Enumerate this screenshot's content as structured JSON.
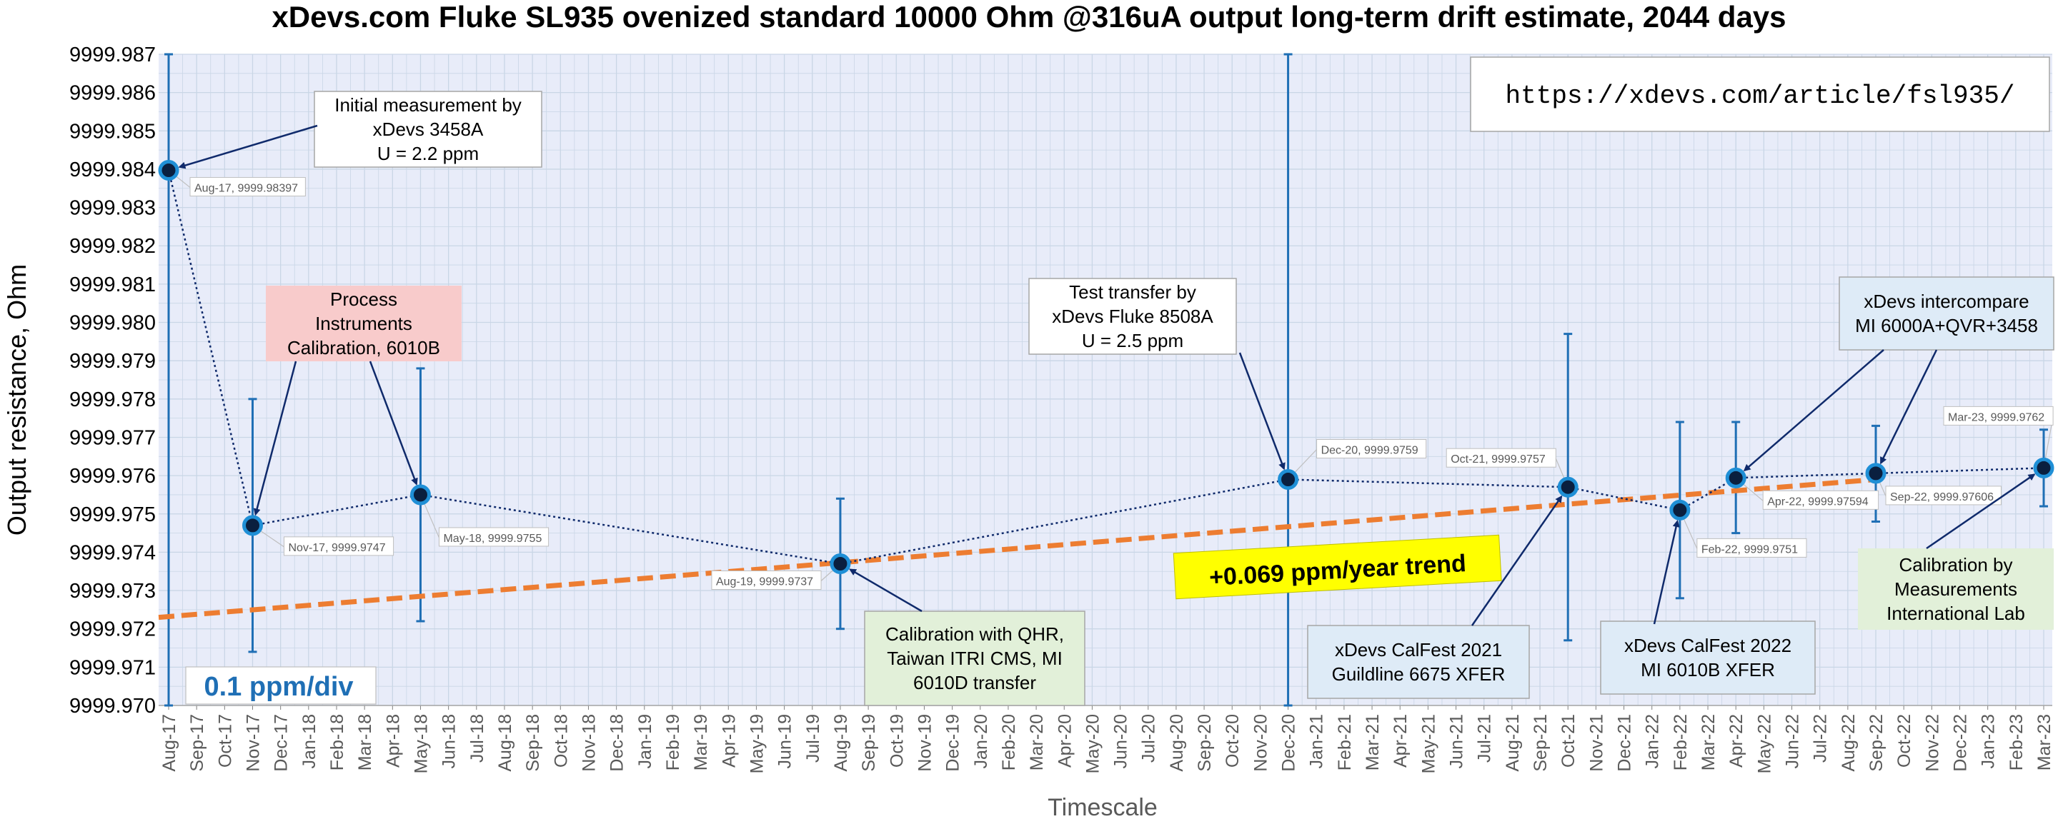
{
  "chart_data": {
    "type": "line",
    "title": "xDevs.com Fluke SL935 ovenized standard 10000 Ohm @316uA output long-term drift estimate, 2044 days",
    "xlabel": "Timescale",
    "ylabel": "Output resistance, Ohm",
    "ylim": [
      9999.97,
      9999.987
    ],
    "grid": true,
    "x_ticks": [
      "Aug-17",
      "Sep-17",
      "Oct-17",
      "Nov-17",
      "Dec-17",
      "Jan-18",
      "Feb-18",
      "Mar-18",
      "Apr-18",
      "May-18",
      "Jun-18",
      "Jul-18",
      "Aug-18",
      "Sep-18",
      "Oct-18",
      "Nov-18",
      "Dec-18",
      "Jan-19",
      "Feb-19",
      "Mar-19",
      "Apr-19",
      "May-19",
      "Jun-19",
      "Jul-19",
      "Aug-19",
      "Sep-19",
      "Oct-19",
      "Nov-19",
      "Dec-19",
      "Jan-20",
      "Feb-20",
      "Mar-20",
      "Apr-20",
      "May-20",
      "Jun-20",
      "Jul-20",
      "Aug-20",
      "Sep-20",
      "Oct-20",
      "Nov-20",
      "Dec-20",
      "Jan-21",
      "Feb-21",
      "Mar-21",
      "Apr-21",
      "May-21",
      "Jun-21",
      "Jul-21",
      "Aug-21",
      "Sep-21",
      "Oct-21",
      "Nov-21",
      "Dec-21",
      "Jan-22",
      "Feb-22",
      "Mar-22",
      "Apr-22",
      "May-22",
      "Jun-22",
      "Jul-22",
      "Aug-22",
      "Sep-22",
      "Oct-22",
      "Nov-22",
      "Dec-22",
      "Jan-23",
      "Feb-23",
      "Mar-23"
    ],
    "y_ticks": [
      "9999.970",
      "9999.971",
      "9999.972",
      "9999.973",
      "9999.974",
      "9999.975",
      "9999.976",
      "9999.977",
      "9999.978",
      "9999.979",
      "9999.980",
      "9999.981",
      "9999.982",
      "9999.983",
      "9999.984",
      "9999.985",
      "9999.986",
      "9999.987"
    ],
    "series": [
      {
        "points": [
          {
            "x": "Aug-17",
            "y": 9999.98397,
            "err_low": 9999.97,
            "err_high": 9999.987,
            "label": "Aug-17, 9999.98397"
          },
          {
            "x": "Nov-17",
            "y": 9999.9747,
            "err_low": 9999.9714,
            "err_high": 9999.978,
            "label": "Nov-17, 9999.9747"
          },
          {
            "x": "May-18",
            "y": 9999.9755,
            "err_low": 9999.9722,
            "err_high": 9999.9788,
            "label": "May-18, 9999.9755"
          },
          {
            "x": "Aug-19",
            "y": 9999.9737,
            "err_low": 9999.972,
            "err_high": 9999.9754,
            "label": "Aug-19, 9999.9737"
          },
          {
            "x": "Dec-20",
            "y": 9999.9759,
            "err_low": 9999.97,
            "err_high": 9999.987,
            "label": "Dec-20, 9999.9759"
          },
          {
            "x": "Oct-21",
            "y": 9999.9757,
            "err_low": 9999.9717,
            "err_high": 9999.9797,
            "label": "Oct-21, 9999.9757"
          },
          {
            "x": "Feb-22",
            "y": 9999.9751,
            "err_low": 9999.9728,
            "err_high": 9999.9774,
            "label": "Feb-22, 9999.9751"
          },
          {
            "x": "Apr-22",
            "y": 9999.97594,
            "err_low": 9999.9745,
            "err_high": 9999.9774,
            "label": "Apr-22, 9999.97594"
          },
          {
            "x": "Sep-22",
            "y": 9999.97606,
            "err_low": 9999.9748,
            "err_high": 9999.9773,
            "label": "Sep-22, 9999.97606"
          },
          {
            "x": "Mar-23",
            "y": 9999.9762,
            "err_low": 9999.9752,
            "err_high": 9999.9772,
            "label": "Mar-23, 9999.9762"
          }
        ]
      }
    ],
    "trend": {
      "x_start": "Aug-17",
      "y_start": 9999.9723,
      "x_end": "Sep-22",
      "y_end": 9999.9759,
      "label": "+0.069 ppm/year trend"
    },
    "annotations": [
      {
        "lines": [
          "Initial measurement by",
          "xDevs 3458A",
          "U = 2.2 ppm"
        ],
        "targets": [
          "Aug-17"
        ]
      },
      {
        "lines": [
          "Process",
          "Instruments",
          "Calibration, 6010B"
        ],
        "targets": [
          "Nov-17",
          "May-18"
        ]
      },
      {
        "lines": [
          "Test transfer by",
          "xDevs Fluke 8508A",
          "U = 2.5 ppm"
        ],
        "targets": [
          "Dec-20"
        ]
      },
      {
        "lines": [
          "Calibration with QHR,",
          "Taiwan ITRI CMS, MI",
          "6010D transfer"
        ],
        "targets": [
          "Aug-19"
        ]
      },
      {
        "lines": [
          "xDevs CalFest 2021",
          "Guildline 6675 XFER"
        ],
        "targets": [
          "Oct-21"
        ]
      },
      {
        "lines": [
          "xDevs CalFest 2022",
          "MI 6010B XFER"
        ],
        "targets": [
          "Feb-22"
        ]
      },
      {
        "lines": [
          "xDevs intercompare",
          "MI 6000A+QVR+3458"
        ],
        "targets": [
          "Apr-22",
          "Sep-22"
        ]
      },
      {
        "lines": [
          "Calibration by",
          "Measurements",
          "International Lab"
        ],
        "targets": [
          "Mar-23"
        ]
      }
    ],
    "scale_note": "0.1 ppm/div",
    "url": "https://xdevs.com/article/fsl935/"
  },
  "colors": {
    "background": "#ffffff",
    "plot_background": "#e8ecf9",
    "gridline": "#c9d6e6",
    "data_line": "#0f2a6b",
    "error_bar": "#1f6fb5",
    "marker_fill": "#0a1f3f",
    "marker_edge": "#1f8fd6",
    "trend": "#ed7d31",
    "trend_label_bg": "#ffff00",
    "pink_box": "#f8cbcb",
    "green_box": "#e2f0d9",
    "blue_box": "#deebf7",
    "scale_note": "#1f6fb5"
  }
}
